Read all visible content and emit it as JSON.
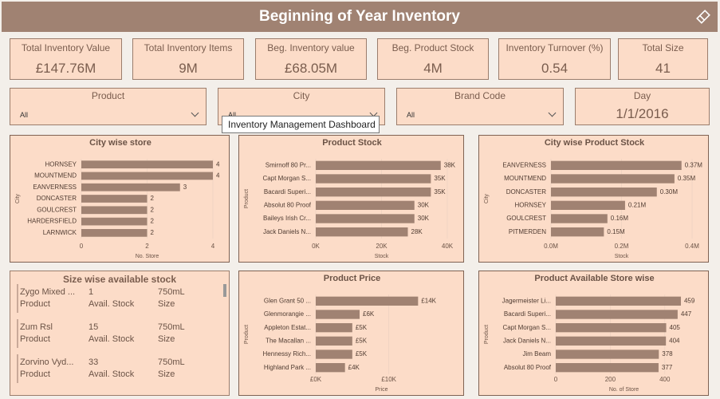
{
  "header": {
    "title": "Beginning of Year Inventory"
  },
  "kpis": [
    {
      "label": "Total Inventory Value",
      "value": "£147.76M"
    },
    {
      "label": "Total Inventory Items",
      "value": "9M"
    },
    {
      "label": "Beg. Inventory value",
      "value": "£68.05M"
    },
    {
      "label": "Beg. Product Stock",
      "value": "4M"
    },
    {
      "label": "Inventory Turnover (%)",
      "value": "0.54"
    },
    {
      "label": "Total Size",
      "value": "41"
    }
  ],
  "slicers": [
    {
      "label": "Product",
      "value": "All"
    },
    {
      "label": "City",
      "value": "All"
    },
    {
      "label": "Brand Code",
      "value": "All"
    },
    {
      "label": "Day",
      "value": "1/1/2016"
    }
  ],
  "tooltip": "Inventory Management Dashboard",
  "size_table": {
    "title": "Size wise available stock",
    "columns": [
      "Product",
      "Avail. Stock",
      "Size"
    ],
    "rows": [
      [
        "Zygo Mixed ...",
        "1",
        "750mL"
      ],
      [
        "Zum Rsl",
        "15",
        "750mL"
      ],
      [
        "Zorvino Vyd...",
        "33",
        "750mL"
      ]
    ]
  },
  "chart_data": [
    {
      "type": "bar",
      "title": "City wise store",
      "color": "#a08272",
      "categories": [
        "HORNSEY",
        "MOUNTMEND",
        "EANVERNESS",
        "DONCASTER",
        "GOULCREST",
        "HARDERSFIELD",
        "LARNWICK"
      ],
      "values": [
        4,
        4,
        3,
        2,
        2,
        2,
        2
      ],
      "xlim": [
        0,
        4
      ],
      "xticks": [
        0,
        2,
        4
      ],
      "xlabel": "No. Store",
      "ylabel": "City"
    },
    {
      "type": "bar",
      "title": "Product Stock",
      "color": "#a08272",
      "categories": [
        "Smirnoff 80 Pr...",
        "Capt Morgan S...",
        "Bacardi Superi...",
        "Absolut 80 Proof",
        "Baileys Irish Cr...",
        "Jack Daniels N..."
      ],
      "values": [
        38000,
        35000,
        35000,
        30000,
        30000,
        28000
      ],
      "value_labels": [
        "38K",
        "35K",
        "35K",
        "30K",
        "30K",
        "28K"
      ],
      "xlim": [
        0,
        40000
      ],
      "xticks": [
        {
          "value": 0,
          "label": "0K"
        },
        {
          "value": 20000,
          "label": "20K"
        },
        {
          "value": 40000,
          "label": "40K"
        }
      ],
      "xlabel": "Stock",
      "ylabel": "Product"
    },
    {
      "type": "bar",
      "title": "City wise Product Stock",
      "color": "#a08272",
      "categories": [
        "EANVERNESS",
        "MOUNTMEND",
        "DONCASTER",
        "HORNSEY",
        "GOULCREST",
        "PITMERDEN"
      ],
      "values": [
        370000,
        350000,
        300000,
        210000,
        160000,
        150000
      ],
      "value_labels": [
        "0.37M",
        "0.35M",
        "0.30M",
        "0.21M",
        "0.16M",
        "0.15M"
      ],
      "xlim": [
        0,
        400000
      ],
      "xticks": [
        {
          "value": 0,
          "label": "0.0M"
        },
        {
          "value": 200000,
          "label": "0.2M"
        },
        {
          "value": 400000,
          "label": "0.4M"
        }
      ],
      "xlabel": "Stock",
      "ylabel": "City"
    },
    {
      "type": "bar",
      "title": "Product Price",
      "color": "#a08272",
      "categories": [
        "Glen Grant 50 ...",
        "Glenmorangie ...",
        "Appleton Estat...",
        "The Macallan ...",
        "Hennessy Rich...",
        "Highland Park ..."
      ],
      "values": [
        14000,
        6000,
        5000,
        5000,
        5000,
        4000
      ],
      "value_labels": [
        "£14K",
        "£6K",
        "£5K",
        "£5K",
        "£5K",
        "£4K"
      ],
      "xlim": [
        0,
        18000
      ],
      "xticks": [
        {
          "value": 0,
          "label": "£0K"
        },
        {
          "value": 10000,
          "label": "£10K"
        }
      ],
      "xlabel": "Price",
      "ylabel": "Product"
    },
    {
      "type": "bar",
      "title": "Product Available Store wise",
      "color": "#a08272",
      "categories": [
        "Jagermeister Li...",
        "Bacardi Superi...",
        "Capt Morgan S...",
        "Jack Daniels N...",
        "Jim Beam",
        "Absolut 80 Proof"
      ],
      "values": [
        459,
        447,
        405,
        404,
        378,
        377
      ],
      "xlim": [
        0,
        500
      ],
      "xticks": [
        0,
        200,
        400
      ],
      "xlabel": "No. of Store",
      "ylabel": "Product"
    }
  ]
}
